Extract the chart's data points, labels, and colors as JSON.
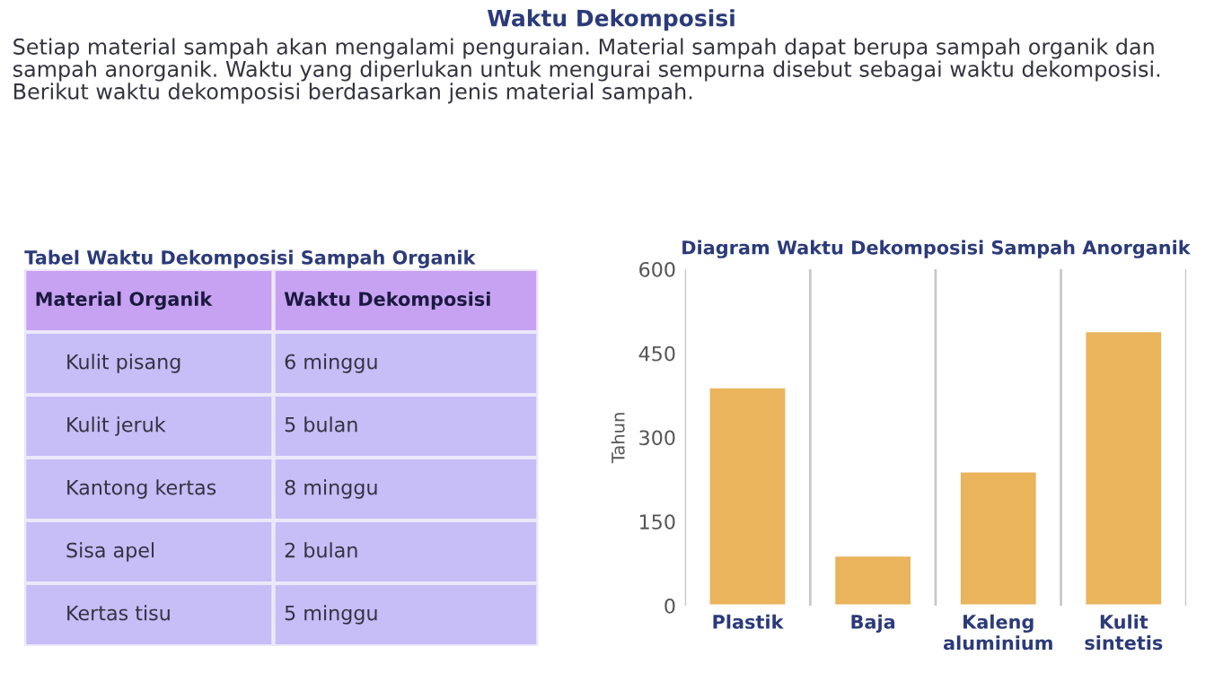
{
  "chart_data": [
    {
      "type": "other",
      "title": "Waktu Dekomposisi",
      "annotations": [
        "Setiap material sampah akan mengalami penguraian. Material sampah dapat berupa sampah organik dan sampah anorganik. Waktu yang diperlukan untuk mengurai sempurna disebut sebagai waktu dekomposisi. Berikut waktu dekomposisi berdasarkan jenis material sampah."
      ]
    },
    {
      "type": "other",
      "title": "Tabel Waktu Dekomposisi Sampah Organik",
      "annotations": [
        "Material Organik",
        "Waktu Dekomposisi",
        "Kulit pisang",
        "6 minggu",
        "Kulit jeruk",
        "5 bulan",
        "Kantong kertas",
        "8 minggu",
        "Sisa apel",
        "2 bulan",
        "Kertas tisu",
        "5 minggu"
      ]
    },
    {
      "type": "bar",
      "title": "Diagram Waktu Dekomposisi Sampah Anorganik",
      "ylabel": "Tahun",
      "categories": [
        "Plastik",
        "Baja",
        "Kaleng\naluminium",
        "Kulit\nsintetis"
      ],
      "values": [
        390,
        90,
        240,
        490
      ],
      "color": "#e9b45c",
      "ylim": [
        0,
        600
      ],
      "yticks": [
        0,
        150,
        300,
        450,
        600
      ],
      "grid": "x"
    }
  ]
}
